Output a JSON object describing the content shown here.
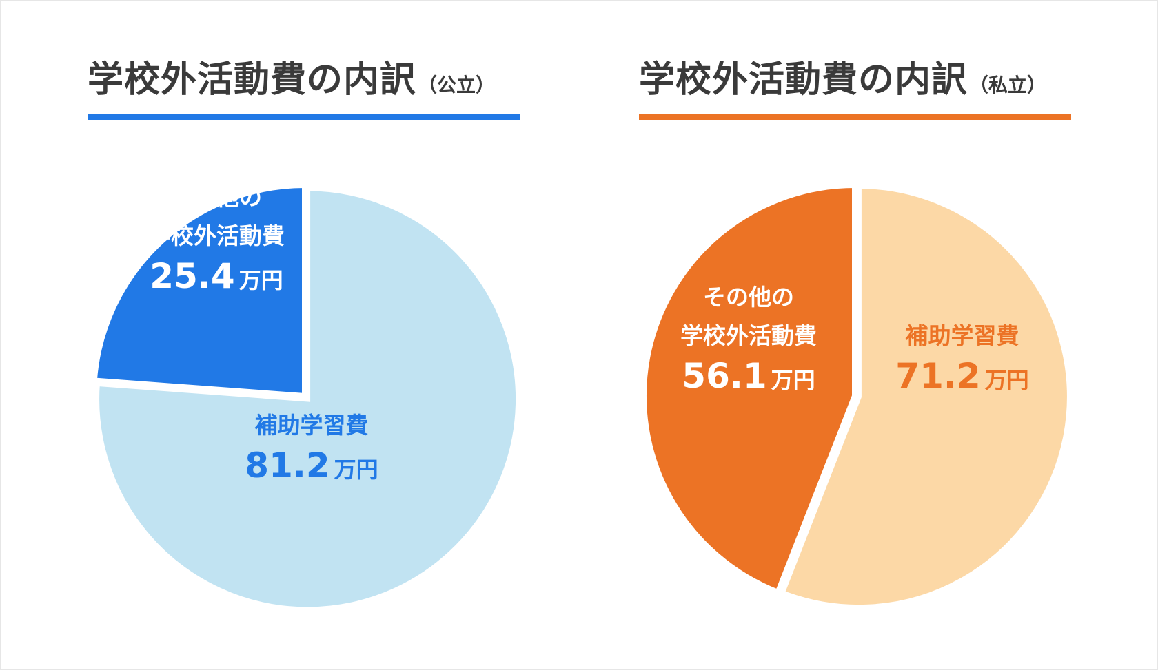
{
  "colors": {
    "public_accent": "#2179e6",
    "public_major": "#c1e3f2",
    "private_accent": "#ec7325",
    "private_major": "#fcd8a6",
    "title_text": "#3a3a3a",
    "white": "#ffffff"
  },
  "chart_data": [
    {
      "type": "pie",
      "title": "学校外活動費の内訳",
      "subtitle": "（公立）",
      "unit": "万円",
      "slices": [
        {
          "label_line1": "その他の",
          "label_line2": "学校外活動費",
          "value": 25.4,
          "value_text": "25.4",
          "color": "#2179e6",
          "text_color": "#ffffff"
        },
        {
          "label_line1": "",
          "label_line2": "補助学習費",
          "value": 81.2,
          "value_text": "81.2",
          "color": "#c1e3f2",
          "text_color": "#2179e6"
        }
      ]
    },
    {
      "type": "pie",
      "title": "学校外活動費の内訳",
      "subtitle": "（私立）",
      "unit": "万円",
      "slices": [
        {
          "label_line1": "その他の",
          "label_line2": "学校外活動費",
          "value": 56.1,
          "value_text": "56.1",
          "color": "#ec7325",
          "text_color": "#ffffff"
        },
        {
          "label_line1": "",
          "label_line2": "補助学習費",
          "value": 71.2,
          "value_text": "71.2",
          "color": "#fcd8a6",
          "text_color": "#ec7325"
        }
      ]
    }
  ]
}
